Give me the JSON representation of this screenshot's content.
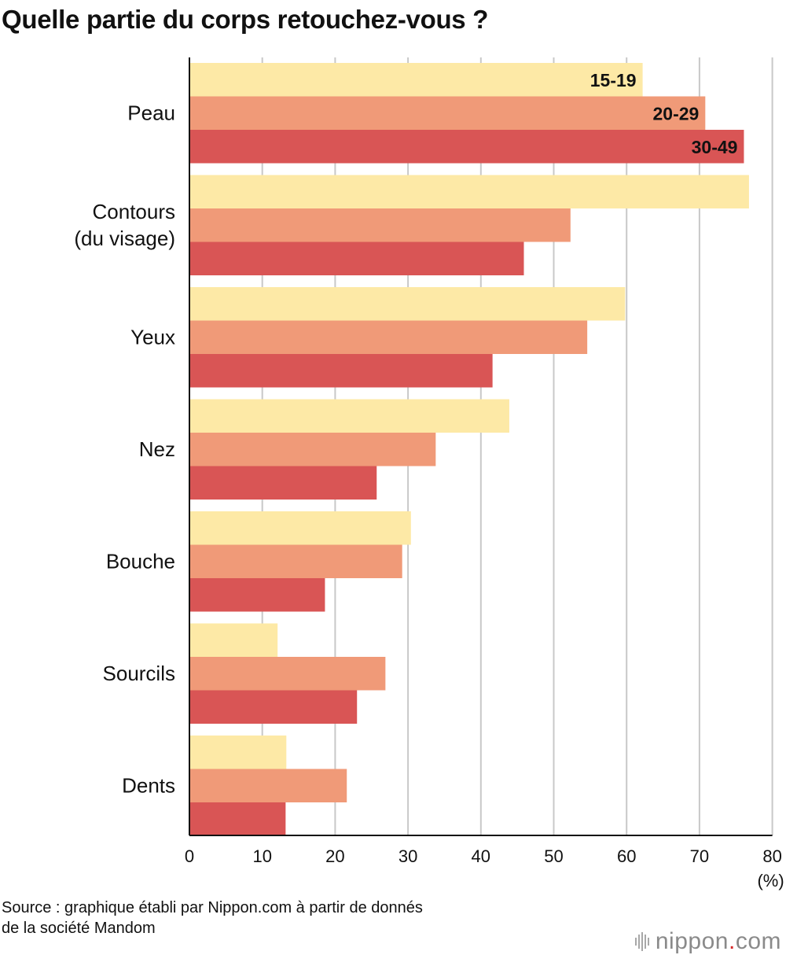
{
  "title": "Quelle partie du corps retouchez-vous ?",
  "source_line1": "Source : graphique établi par Nippon.com à partir de donnés",
  "source_line2": "de la société Mandom",
  "logo": {
    "part1": "nippon",
    "dot": ".",
    "part2": "com"
  },
  "colors": {
    "15-19": "#fde9a6",
    "20-29": "#f09a78",
    "30-49": "#d95555",
    "grid": "#c8c8c8",
    "axis": "#111111"
  },
  "chart_data": {
    "type": "bar",
    "orientation": "horizontal",
    "categories": [
      "Peau",
      "Contours\n(du visage)",
      "Yeux",
      "Nez",
      "Bouche",
      "Sourcils",
      "Dents"
    ],
    "series": [
      {
        "name": "15-19",
        "values": [
          62.2,
          76.8,
          59.8,
          43.9,
          30.4,
          12.1,
          13.3
        ]
      },
      {
        "name": "20-29",
        "values": [
          70.8,
          52.3,
          54.6,
          33.8,
          29.2,
          26.9,
          21.6
        ]
      },
      {
        "name": "30-49",
        "values": [
          76.1,
          45.9,
          41.6,
          25.7,
          18.6,
          23.0,
          13.2
        ]
      }
    ],
    "xlim": [
      0,
      80
    ],
    "xticks": [
      0,
      10,
      20,
      30,
      40,
      50,
      60,
      70,
      80
    ],
    "unit_label": "(%)",
    "grid": true,
    "legend": "series names printed inside the first category's bars"
  }
}
